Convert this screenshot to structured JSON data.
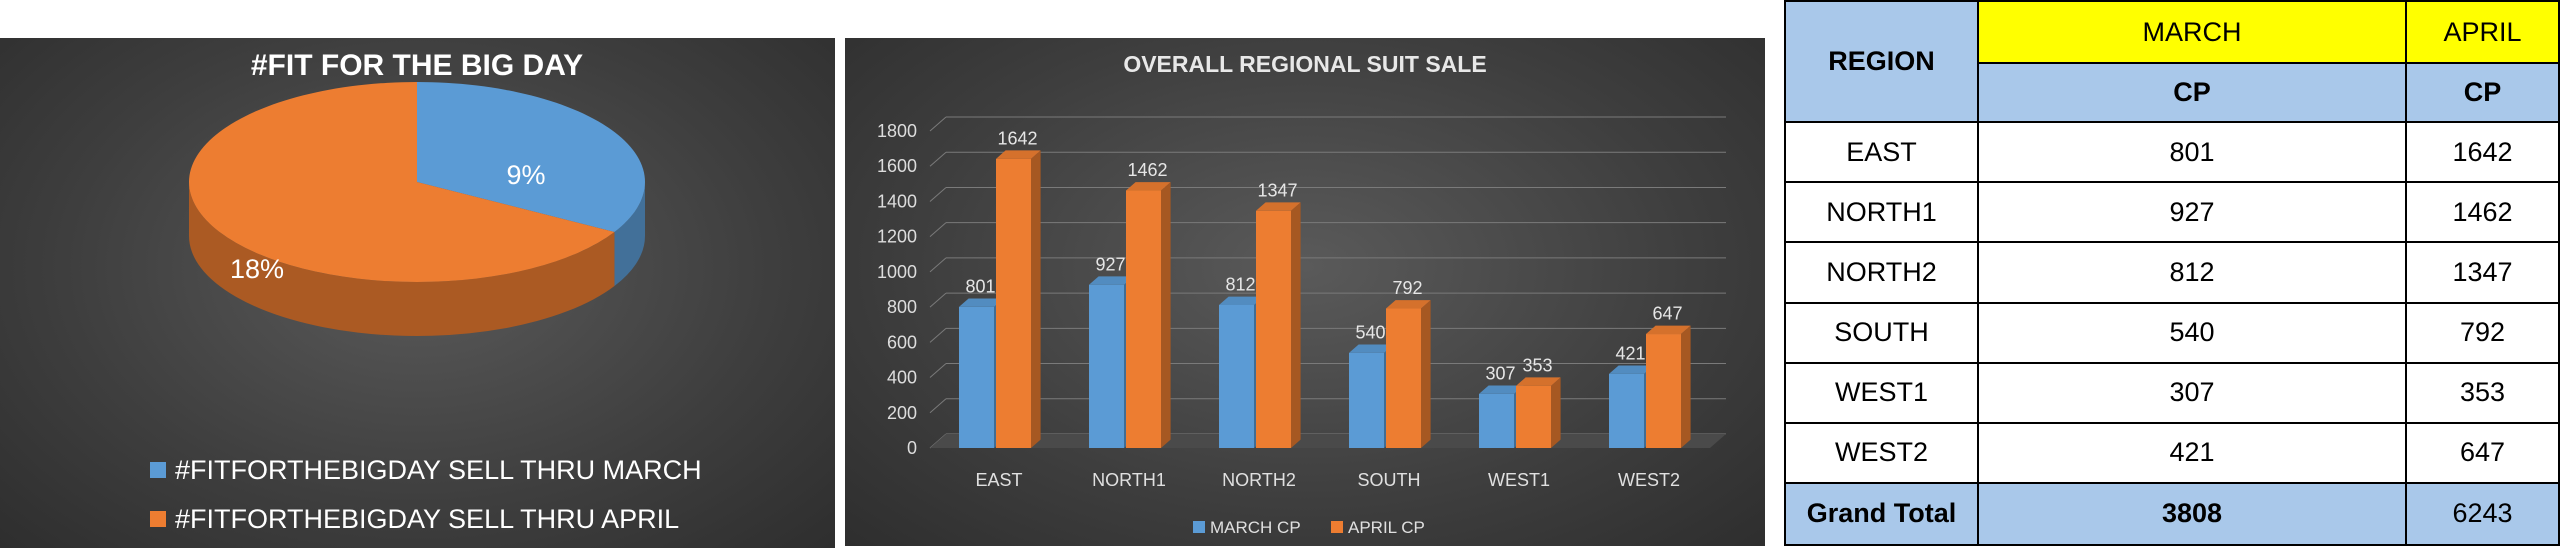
{
  "pie": {
    "title": "#FIT FOR THE BIG DAY",
    "slices": [
      {
        "label": "9%",
        "value": 9,
        "color": "#5b9bd5",
        "legend": "#FITFORTHEBIGDAY SELL THRU MARCH"
      },
      {
        "label": "18%",
        "value": 18,
        "color": "#ed7d31",
        "legend": "#FITFORTHEBIGDAY SELL THRU APRIL"
      }
    ]
  },
  "chart_data": {
    "type": "bar",
    "title": "OVERALL REGIONAL SUIT SALE",
    "categories": [
      "EAST",
      "NORTH1",
      "NORTH2",
      "SOUTH",
      "WEST1",
      "WEST2"
    ],
    "series": [
      {
        "name": "MARCH CP",
        "values": [
          801,
          927,
          812,
          540,
          307,
          421
        ],
        "color": "#5b9bd5"
      },
      {
        "name": "APRIL  CP",
        "values": [
          1642,
          1462,
          1347,
          792,
          353,
          647
        ],
        "color": "#ed7d31"
      }
    ],
    "ylim": [
      0,
      1800
    ],
    "yticks": [
      "0",
      "200",
      "400",
      "600",
      "800",
      "1000",
      "1200",
      "1400",
      "1600",
      "1800"
    ],
    "grid": true,
    "legend_position": "bottom"
  },
  "table": {
    "region_header": "REGION",
    "month1": "MARCH",
    "month2": "APRIL",
    "sub1": "CP",
    "sub2": "CP",
    "rows": [
      {
        "region": "EAST",
        "march": "801",
        "april": "1642"
      },
      {
        "region": "NORTH1",
        "march": "927",
        "april": "1462"
      },
      {
        "region": "NORTH2",
        "march": "812",
        "april": "1347"
      },
      {
        "region": "SOUTH",
        "march": "540",
        "april": "792"
      },
      {
        "region": "WEST1",
        "march": "307",
        "april": "353"
      },
      {
        "region": "WEST2",
        "march": "421",
        "april": "647"
      }
    ],
    "total_label": "Grand Total",
    "total_march": "3808",
    "total_april": "6243"
  }
}
